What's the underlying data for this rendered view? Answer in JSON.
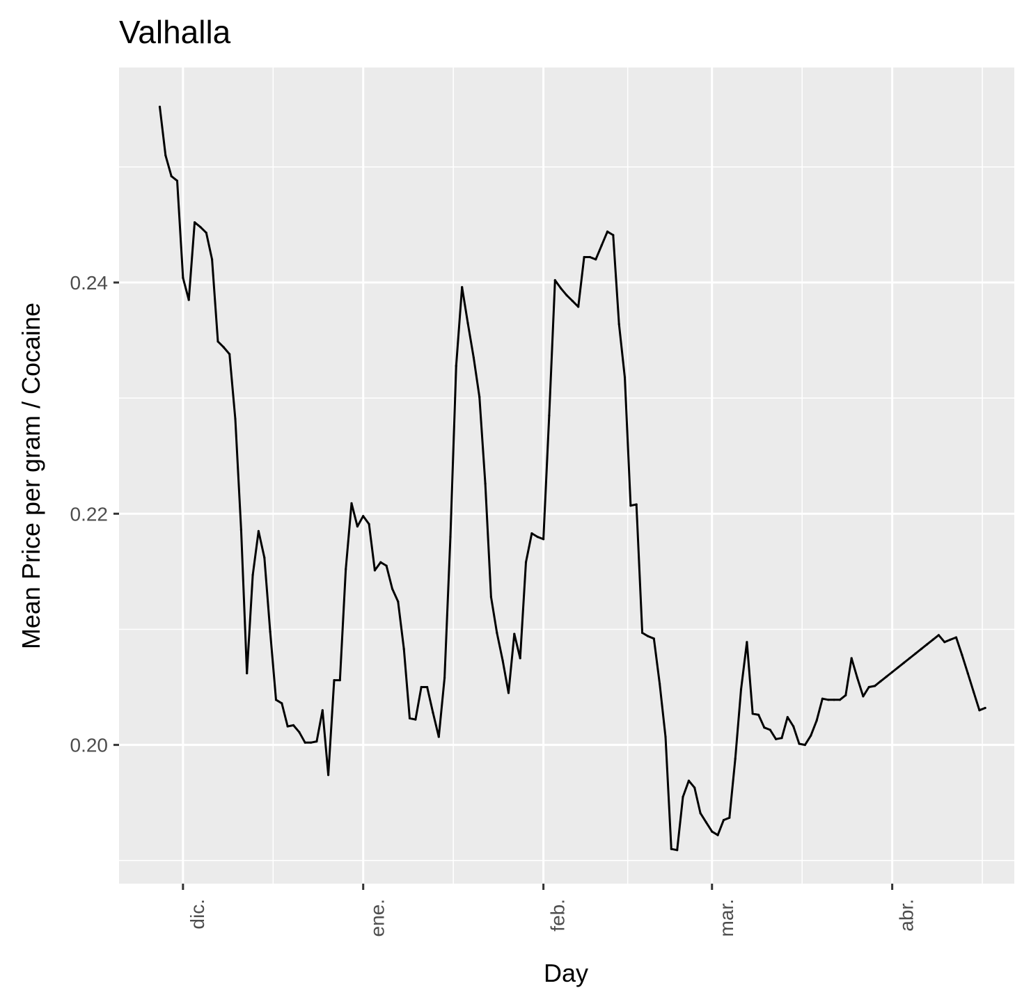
{
  "chart_data": {
    "type": "line",
    "title": "Valhalla",
    "xlabel": "Day",
    "ylabel": "Mean Price per gram / Cocaine",
    "x_tick_labels": [
      "dic.",
      "ene.",
      "feb.",
      "mar.",
      "abr."
    ],
    "x_tick_days": [
      0,
      31,
      62,
      91,
      122
    ],
    "x_minor_days": [
      15.5,
      46.5,
      76.5,
      106.5,
      137.5
    ],
    "xlim": [
      -11,
      143
    ],
    "y_ticks": [
      0.2,
      0.22,
      0.24
    ],
    "y_tick_labels": [
      "0.20",
      "0.22",
      "0.24"
    ],
    "y_minor_ticks": [
      0.19,
      0.21,
      0.23,
      0.25
    ],
    "ylim": [
      0.188,
      0.2586
    ],
    "grid": true,
    "series": [
      {
        "name": "Valhalla",
        "color": "#000000",
        "x": [
          -4,
          -3,
          -2,
          -1,
          0,
          1,
          2,
          3,
          4,
          5,
          6,
          7,
          8,
          9,
          10,
          11,
          12,
          13,
          14,
          15,
          16,
          17,
          18,
          19,
          20,
          21,
          22,
          23,
          24,
          25,
          26,
          27,
          28,
          29,
          30,
          31,
          32,
          33,
          34,
          35,
          36,
          37,
          38,
          39,
          40,
          41,
          42,
          43,
          44,
          45,
          46,
          47,
          48,
          49,
          50,
          51,
          52,
          53,
          54,
          55,
          56,
          57,
          58,
          59,
          60,
          61,
          62,
          63,
          64,
          65,
          66,
          67,
          68,
          69,
          70,
          71,
          72,
          73,
          74,
          75,
          76,
          77,
          78,
          79,
          80,
          81,
          82,
          83,
          84,
          85,
          86,
          87,
          88,
          89,
          90,
          91,
          92,
          93,
          94,
          95,
          96,
          97,
          98,
          99,
          100,
          101,
          102,
          103,
          104,
          105,
          106,
          107,
          108,
          109,
          110,
          111,
          112,
          113,
          114,
          115,
          116,
          117,
          118,
          119,
          120,
          121,
          122,
          123,
          124,
          125,
          126,
          127,
          128,
          129,
          130,
          131,
          132,
          133,
          134,
          135,
          136,
          137,
          138
        ],
        "y": [
          0.2552,
          0.251,
          0.2492,
          0.2488,
          0.2404,
          0.2385,
          0.2452,
          0.2448,
          0.2443,
          0.242,
          0.2349,
          0.2344,
          0.2338,
          0.2282,
          0.2186,
          0.2062,
          0.2147,
          0.2185,
          0.2162,
          0.2098,
          0.2039,
          0.2036,
          0.2016,
          0.2017,
          0.2011,
          0.2002,
          0.2002,
          0.2003,
          0.203,
          0.1974,
          0.2056,
          0.2056,
          0.2152,
          0.2209,
          0.2189,
          0.2198,
          0.2191,
          0.2151,
          0.2158,
          0.2155,
          0.2135,
          0.2124,
          0.2083,
          0.2023,
          0.2022,
          0.205,
          0.205,
          0.2028,
          0.2007,
          0.2058,
          0.218,
          0.2328,
          0.2396,
          0.2365,
          0.2335,
          0.2301,
          0.2226,
          0.2128,
          0.2097,
          0.2073,
          0.2045,
          0.2096,
          0.2075,
          0.2158,
          0.2183,
          0.218,
          0.2178,
          0.2285,
          0.2402,
          0.2395,
          0.2389,
          0.2384,
          0.2379,
          0.2422,
          0.2422,
          0.242,
          0.2432,
          0.2444,
          0.2441,
          0.2364,
          0.2318,
          0.2207,
          0.2208,
          0.2097,
          0.2094,
          0.2092,
          0.2053,
          0.2007,
          0.191,
          0.1909,
          0.1955,
          0.1969,
          0.1963,
          0.1941,
          0.1933,
          0.1925,
          0.1922,
          0.1935,
          0.1937,
          0.1988,
          0.2048,
          0.2089,
          0.2027,
          0.2026,
          0.2015,
          0.2013,
          0.2005,
          0.2006,
          0.2024,
          0.2016,
          0.2001,
          0.2,
          0.2008,
          0.2021,
          0.204,
          0.2039,
          0.2039,
          0.2039,
          0.2043,
          0.2075,
          0.2058,
          0.2042,
          0.205,
          0.2051,
          0.2055,
          0.2059,
          0.2063,
          0.2067,
          0.2071,
          0.2075,
          0.2079,
          0.2083,
          0.2087,
          0.2091,
          0.2095,
          0.2089,
          0.2091,
          0.2093,
          0.2078,
          0.2062,
          0.2046,
          0.203,
          0.2032
        ]
      }
    ]
  }
}
